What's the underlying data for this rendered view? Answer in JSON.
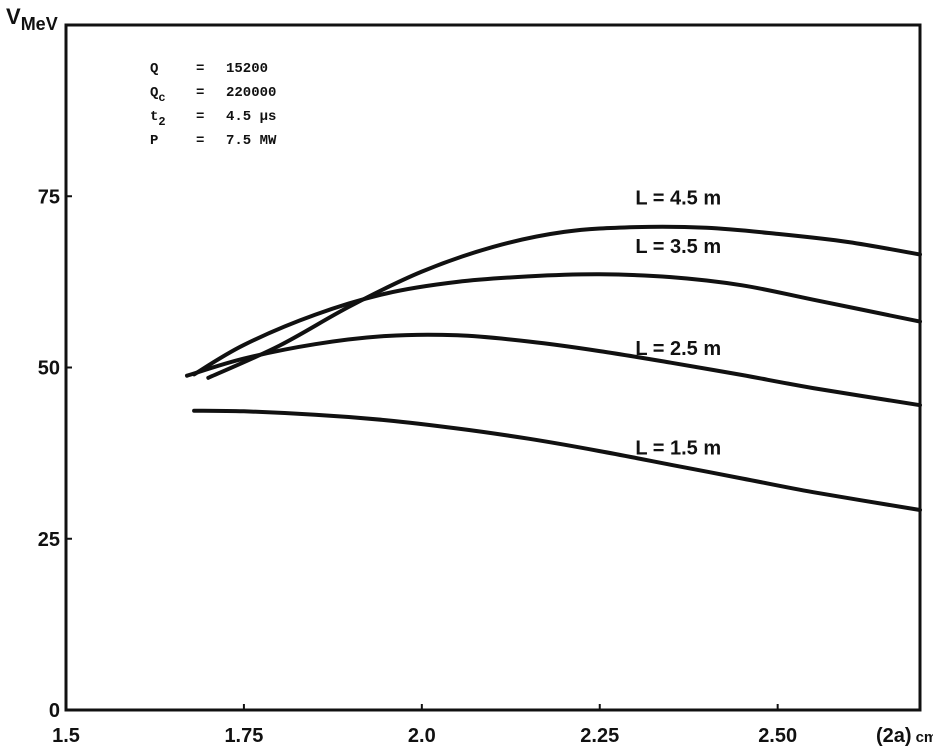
{
  "chart_data": {
    "type": "line",
    "title": "",
    "ylabel": {
      "main": "V",
      "sub": "MeV"
    },
    "xlabel": {
      "main": "(2a)",
      "unit": "cm"
    },
    "xlim": [
      1.5,
      2.7
    ],
    "ylim": [
      0,
      100
    ],
    "x_tick_values": [
      1.5,
      1.75,
      2.0,
      2.25,
      2.5
    ],
    "x_tick_labels": [
      "1.5",
      "1.75",
      "2.0",
      "2.25",
      "2.50"
    ],
    "y_tick_values": [
      0,
      25,
      50,
      75
    ],
    "y_tick_labels": [
      "0",
      "25",
      "50",
      "75"
    ],
    "grid": false,
    "parameters": [
      {
        "name": "Q",
        "sub": "",
        "eq": "=",
        "value": "15200"
      },
      {
        "name": "Q",
        "sub": "c",
        "eq": "=",
        "value": "220000"
      },
      {
        "name": "t",
        "sub": "2",
        "eq": "=",
        "value": "4.5 μs"
      },
      {
        "name": "P",
        "sub": "",
        "eq": "=",
        "value": "7.5 MW"
      }
    ],
    "series": [
      {
        "name": "L = 4.5 m",
        "label_at": [
          2.3,
          73.8
        ],
        "x": [
          1.7,
          1.8,
          1.9,
          2.0,
          2.1,
          2.2,
          2.3,
          2.4,
          2.5,
          2.6,
          2.7
        ],
        "y": [
          48.5,
          53.2,
          59.0,
          64.0,
          67.6,
          69.8,
          70.5,
          70.4,
          69.5,
          68.3,
          66.5
        ]
      },
      {
        "name": "L = 3.5 m",
        "label_at": [
          2.3,
          66.7
        ],
        "x": [
          1.68,
          1.75,
          1.85,
          1.95,
          2.05,
          2.15,
          2.25,
          2.35,
          2.45,
          2.55,
          2.7
        ],
        "y": [
          49.0,
          53.3,
          57.7,
          60.8,
          62.5,
          63.3,
          63.6,
          63.2,
          62.0,
          59.9,
          56.7
        ]
      },
      {
        "name": "L = 2.5 m",
        "label_at": [
          2.3,
          51.8
        ],
        "x": [
          1.67,
          1.75,
          1.85,
          1.95,
          2.05,
          2.15,
          2.25,
          2.35,
          2.45,
          2.55,
          2.7
        ],
        "y": [
          48.8,
          51.3,
          53.4,
          54.6,
          54.7,
          53.8,
          52.4,
          50.7,
          48.9,
          47.0,
          44.5
        ]
      },
      {
        "name": "L = 1.5 m",
        "label_at": [
          2.3,
          37.3
        ],
        "x": [
          1.68,
          1.75,
          1.85,
          1.95,
          2.05,
          2.15,
          2.25,
          2.35,
          2.45,
          2.55,
          2.7
        ],
        "y": [
          43.7,
          43.6,
          43.1,
          42.3,
          41.1,
          39.6,
          37.8,
          35.8,
          33.8,
          31.8,
          29.2
        ]
      }
    ]
  }
}
